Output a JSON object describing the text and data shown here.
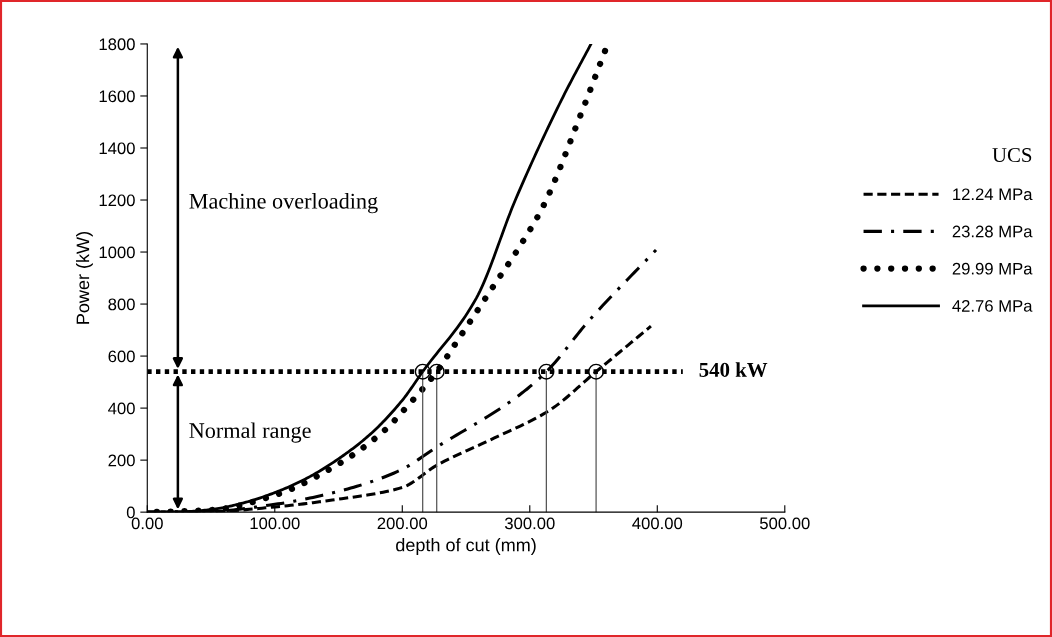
{
  "chart_data": {
    "type": "line",
    "xlabel": "depth of cut (mm)",
    "ylabel": "Power (kW)",
    "legend_title": "UCS",
    "legend": "right",
    "grid": false,
    "xlim": [
      0,
      500
    ],
    "xticks": [
      {
        "value": 0,
        "label": "0.00"
      },
      {
        "value": 100,
        "label": "100.00"
      },
      {
        "value": 200,
        "label": "200.00"
      },
      {
        "value": 300,
        "label": "300.00"
      },
      {
        "value": 400,
        "label": "400.00"
      },
      {
        "value": 500,
        "label": "500.00"
      }
    ],
    "ylim": [
      0,
      1800
    ],
    "yticks": [
      0,
      200,
      400,
      600,
      800,
      1000,
      1200,
      1400,
      1600,
      1800
    ],
    "series": [
      {
        "name": "12.24 MPa",
        "color": "#000000",
        "line_style": "dashed",
        "x": [
          0,
          50,
          100,
          150,
          200,
          227,
          270,
          315,
          352,
          395
        ],
        "values": [
          0,
          2,
          20,
          50,
          95,
          180,
          280,
          390,
          540,
          715
        ]
      },
      {
        "name": "23.28 MPa",
        "color": "#000000",
        "line_style": "dashdot",
        "x": [
          0,
          50,
          100,
          150,
          198,
          227,
          289,
          313,
          346,
          399
        ],
        "values": [
          0,
          3,
          30,
          80,
          160,
          250,
          440,
          540,
          734,
          1008
        ]
      },
      {
        "name": "29.99 MPa",
        "color": "#000000",
        "line_style": "dotted",
        "x": [
          0,
          50,
          100,
          150,
          186,
          203,
          227,
          242,
          273,
          291,
          311,
          340,
          359
        ],
        "values": [
          0,
          8,
          65,
          185,
          314,
          402,
          540,
          650,
          880,
          1013,
          1181,
          1529,
          1773
        ]
      },
      {
        "name": "42.76 MPa",
        "color": "#000000",
        "line_style": "solid",
        "x": [
          0,
          25,
          50,
          75,
          100,
          125,
          150,
          175,
          200,
          216,
          258,
          289,
          325,
          348
        ],
        "values": [
          0,
          1,
          10,
          35,
          75,
          130,
          205,
          300,
          430,
          540,
          822,
          1204,
          1586,
          1800
        ]
      },
      {
        "type": "scatter",
        "marker": "circle",
        "color": "#000000",
        "x": [
          216,
          227,
          313,
          352
        ],
        "values": [
          540,
          540,
          540,
          540
        ]
      },
      {
        "color": "#555555",
        "line_style": "solid",
        "x": [
          216,
          216
        ],
        "values": [
          0,
          540
        ]
      },
      {
        "color": "#555555",
        "line_style": "solid",
        "x": [
          227,
          227
        ],
        "values": [
          0,
          540
        ]
      },
      {
        "color": "#555555",
        "line_style": "solid",
        "x": [
          313,
          313
        ],
        "values": [
          0,
          540
        ]
      },
      {
        "color": "#555555",
        "line_style": "solid",
        "x": [
          352,
          352
        ],
        "values": [
          0,
          540
        ]
      }
    ],
    "ref_lines": [
      {
        "axis": "y",
        "value": 540,
        "label": "540 kW",
        "line_style": "dotted",
        "color": "#000000"
      }
    ],
    "annotations": [
      "Machine overloading",
      "Normal range"
    ]
  }
}
